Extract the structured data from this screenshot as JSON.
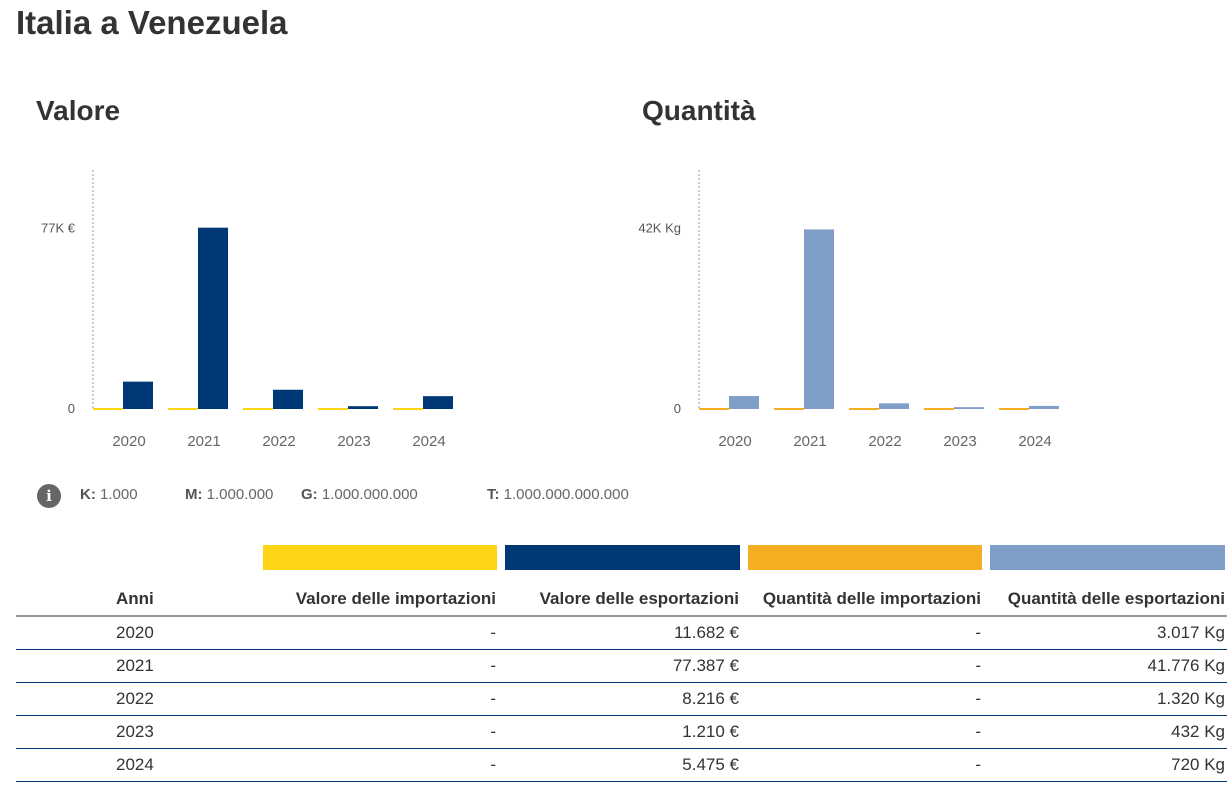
{
  "title": "Italia a Venezuela",
  "legend": {
    "items": [
      {
        "key": "K:",
        "value": "1.000"
      },
      {
        "key": "M:",
        "value": "1.000.000"
      },
      {
        "key": "G:",
        "value": "1.000.000.000"
      },
      {
        "key": "T:",
        "value": "1.000.000.000.000"
      }
    ]
  },
  "colors": {
    "import_value": "#fdd516",
    "export_value": "#003775",
    "import_qty": "#f5ae21",
    "export_qty": "#7f9fc9"
  },
  "chart_data": [
    {
      "type": "bar",
      "title": "Valore",
      "categories": [
        "2020",
        "2021",
        "2022",
        "2023",
        "2024"
      ],
      "series": [
        {
          "name": "Valore delle importazioni",
          "values": [
            0,
            0,
            0,
            0,
            0
          ]
        },
        {
          "name": "Valore delle esportazioni",
          "values": [
            11682,
            77387,
            8216,
            1210,
            5475
          ]
        }
      ],
      "yticks": [
        {
          "value": 0,
          "label": "0"
        },
        {
          "value": 77000,
          "label": "77K €"
        }
      ],
      "ylim": [
        0,
        102000
      ]
    },
    {
      "type": "bar",
      "title": "Quantità",
      "categories": [
        "2020",
        "2021",
        "2022",
        "2023",
        "2024"
      ],
      "series": [
        {
          "name": "Quantità delle importazioni",
          "values": [
            0,
            0,
            0,
            0,
            0
          ]
        },
        {
          "name": "Quantità delle esportazioni",
          "values": [
            3017,
            41776,
            1320,
            432,
            720
          ]
        }
      ],
      "yticks": [
        {
          "value": 0,
          "label": "0"
        },
        {
          "value": 42000,
          "label": "42K Kg"
        }
      ],
      "ylim": [
        0,
        55600
      ]
    }
  ],
  "table": {
    "headers": [
      "Anni",
      "Valore delle importazioni",
      "Valore delle esportazioni",
      "Quantità delle importazioni",
      "Quantità delle esportazioni"
    ],
    "rows": [
      [
        "2020",
        "-",
        "11.682 €",
        "-",
        "3.017 Kg"
      ],
      [
        "2021",
        "-",
        "77.387 €",
        "-",
        "41.776 Kg"
      ],
      [
        "2022",
        "-",
        "8.216 €",
        "-",
        "1.320 Kg"
      ],
      [
        "2023",
        "-",
        "1.210 €",
        "-",
        "432 Kg"
      ],
      [
        "2024",
        "-",
        "5.475 €",
        "-",
        "720 Kg"
      ]
    ]
  }
}
